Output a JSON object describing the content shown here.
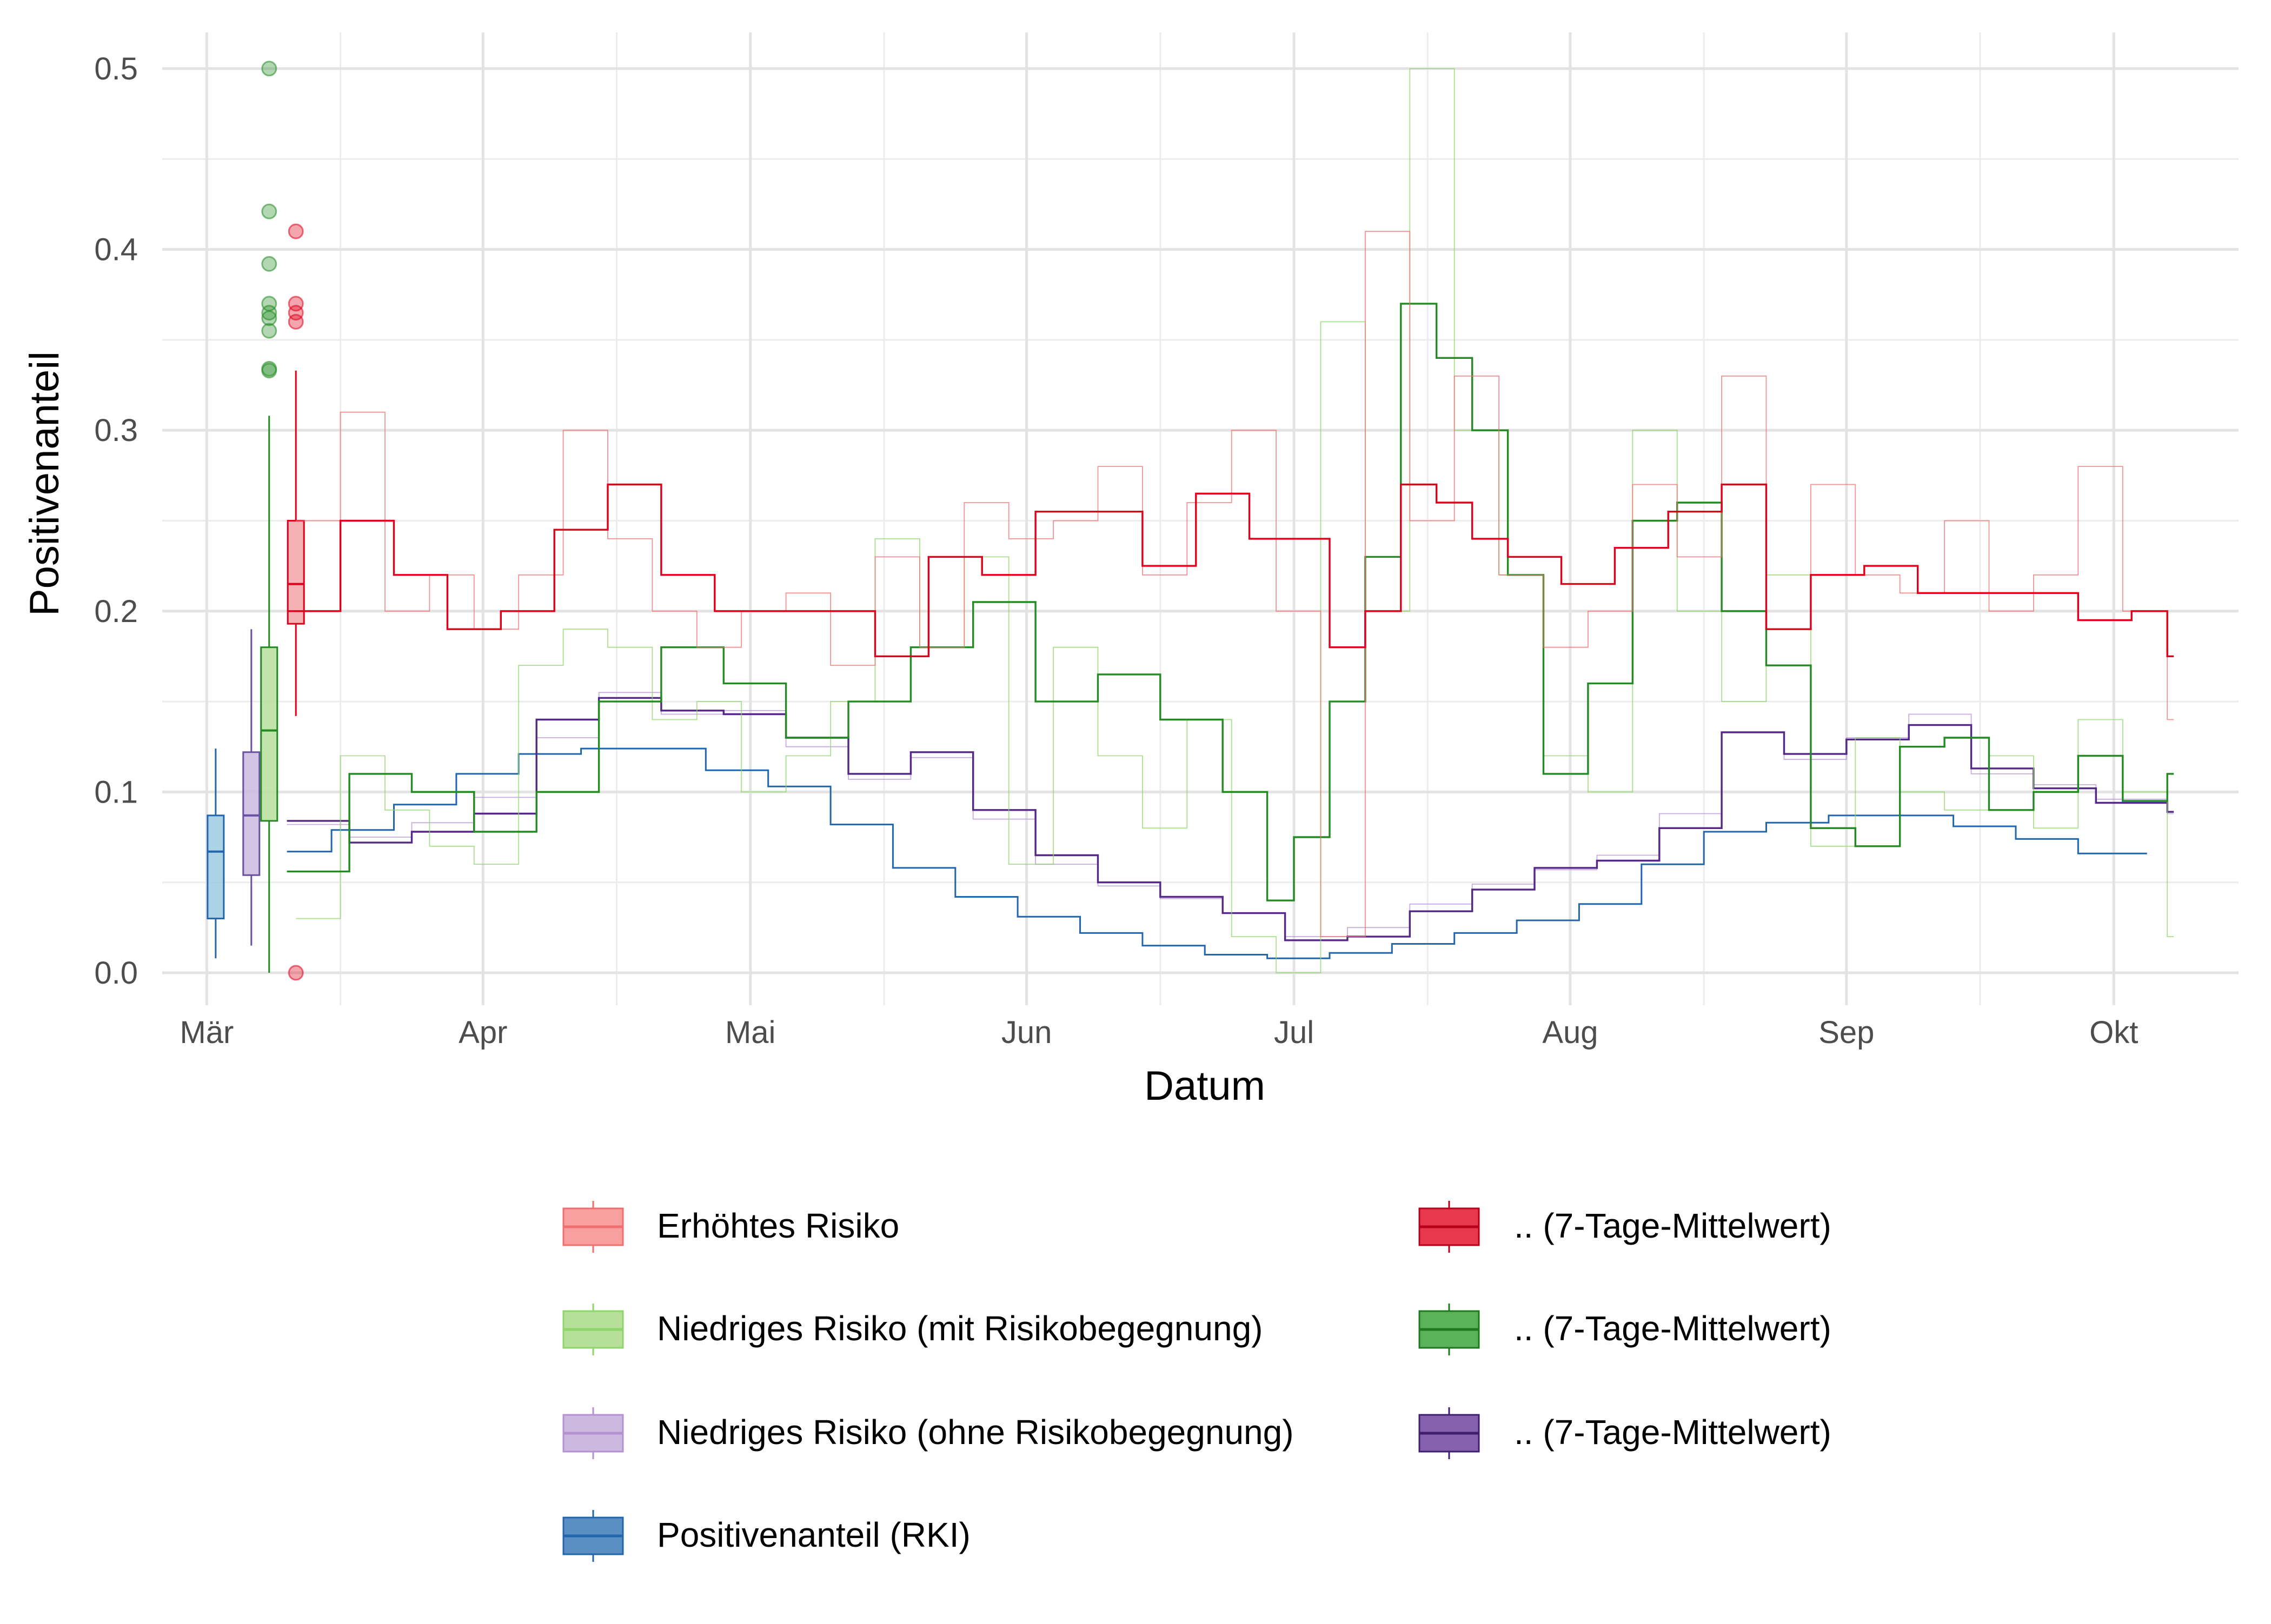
{
  "chart_data": {
    "type": "line",
    "title": "",
    "xlabel": "Datum",
    "ylabel": "Positivenanteil",
    "ylim": [
      0,
      0.52
    ],
    "xlim": [
      "2021-02-24",
      "2021-10-15"
    ],
    "grid": true,
    "legend_position": "bottom",
    "x_ticks": [
      {
        "date": "2021-03-01",
        "label": "Mär"
      },
      {
        "date": "2021-04-01",
        "label": "Apr"
      },
      {
        "date": "2021-05-01",
        "label": "Mai"
      },
      {
        "date": "2021-06-01",
        "label": "Jun"
      },
      {
        "date": "2021-07-01",
        "label": "Jul"
      },
      {
        "date": "2021-08-01",
        "label": "Aug"
      },
      {
        "date": "2021-09-01",
        "label": "Sep"
      },
      {
        "date": "2021-10-01",
        "label": "Okt"
      }
    ],
    "y_ticks": [
      {
        "value": 0.0,
        "label": "0.0"
      },
      {
        "value": 0.1,
        "label": "0.1"
      },
      {
        "value": 0.2,
        "label": "0.2"
      },
      {
        "value": 0.3,
        "label": "0.3"
      },
      {
        "value": 0.4,
        "label": "0.4"
      },
      {
        "value": 0.5,
        "label": "0.5"
      }
    ],
    "series": [
      {
        "name": "Positivenanteil (RKI)",
        "color": "#2166ac",
        "opacity": 1,
        "width": 3,
        "x": [
          "2021-03-10",
          "2021-03-15",
          "2021-03-22",
          "2021-03-29",
          "2021-04-05",
          "2021-04-12",
          "2021-04-19",
          "2021-04-26",
          "2021-05-03",
          "2021-05-10",
          "2021-05-17",
          "2021-05-24",
          "2021-05-31",
          "2021-06-07",
          "2021-06-14",
          "2021-06-21",
          "2021-06-28",
          "2021-07-05",
          "2021-07-12",
          "2021-07-19",
          "2021-07-26",
          "2021-08-02",
          "2021-08-09",
          "2021-08-16",
          "2021-08-23",
          "2021-08-30",
          "2021-09-06",
          "2021-09-13",
          "2021-09-20",
          "2021-09-27",
          "2021-10-04"
        ],
        "y": [
          0.067,
          0.079,
          0.093,
          0.11,
          0.121,
          0.124,
          0.124,
          0.112,
          0.103,
          0.082,
          0.058,
          0.042,
          0.031,
          0.022,
          0.015,
          0.01,
          0.008,
          0.011,
          0.016,
          0.022,
          0.029,
          0.038,
          0.06,
          0.078,
          0.083,
          0.087,
          0.087,
          0.081,
          0.074,
          0.066,
          0.066
        ]
      },
      {
        "name": "Niedriges Risiko (ohne Risikobegegnung)",
        "color": "#b491d2",
        "opacity": 0.75,
        "width": 1.8,
        "x": [
          "2021-03-10",
          "2021-03-17",
          "2021-03-24",
          "2021-03-31",
          "2021-04-07",
          "2021-04-14",
          "2021-04-21",
          "2021-04-28",
          "2021-05-05",
          "2021-05-12",
          "2021-05-19",
          "2021-05-26",
          "2021-06-02",
          "2021-06-09",
          "2021-06-16",
          "2021-06-23",
          "2021-06-30",
          "2021-07-07",
          "2021-07-14",
          "2021-07-21",
          "2021-07-28",
          "2021-08-04",
          "2021-08-11",
          "2021-08-18",
          "2021-08-25",
          "2021-09-01",
          "2021-09-08",
          "2021-09-15",
          "2021-09-22",
          "2021-09-29",
          "2021-10-07"
        ],
        "y": [
          0.082,
          0.075,
          0.083,
          0.097,
          0.13,
          0.155,
          0.143,
          0.145,
          0.125,
          0.107,
          0.119,
          0.085,
          0.06,
          0.048,
          0.041,
          0.033,
          0.02,
          0.025,
          0.038,
          0.049,
          0.057,
          0.065,
          0.088,
          0.133,
          0.118,
          0.13,
          0.143,
          0.11,
          0.104,
          0.096,
          0.088
        ]
      },
      {
        "name": ".. (7-Tage-Mittelwert)",
        "legend_group": "Niedriges Risiko (ohne Risikobegegnung)",
        "color": "#542788",
        "opacity": 1,
        "width": 3.4,
        "x": [
          "2021-03-10",
          "2021-03-17",
          "2021-03-24",
          "2021-03-31",
          "2021-04-07",
          "2021-04-14",
          "2021-04-21",
          "2021-04-28",
          "2021-05-05",
          "2021-05-12",
          "2021-05-19",
          "2021-05-26",
          "2021-06-02",
          "2021-06-09",
          "2021-06-16",
          "2021-06-23",
          "2021-06-30",
          "2021-07-07",
          "2021-07-14",
          "2021-07-21",
          "2021-07-28",
          "2021-08-04",
          "2021-08-11",
          "2021-08-18",
          "2021-08-25",
          "2021-09-01",
          "2021-09-08",
          "2021-09-15",
          "2021-09-22",
          "2021-09-29",
          "2021-10-07"
        ],
        "y": [
          0.084,
          0.072,
          0.078,
          0.088,
          0.14,
          0.152,
          0.145,
          0.143,
          0.13,
          0.11,
          0.122,
          0.09,
          0.065,
          0.05,
          0.042,
          0.033,
          0.018,
          0.02,
          0.034,
          0.046,
          0.058,
          0.062,
          0.08,
          0.133,
          0.121,
          0.129,
          0.137,
          0.113,
          0.102,
          0.094,
          0.089
        ]
      },
      {
        "name": "Niedriges Risiko (mit Risikobegegnung)",
        "color": "#8fd66a",
        "opacity": 0.75,
        "width": 1.8,
        "x": [
          "2021-03-11",
          "2021-03-16",
          "2021-03-21",
          "2021-03-26",
          "2021-03-31",
          "2021-04-05",
          "2021-04-10",
          "2021-04-15",
          "2021-04-20",
          "2021-04-25",
          "2021-04-30",
          "2021-05-05",
          "2021-05-10",
          "2021-05-15",
          "2021-05-20",
          "2021-05-25",
          "2021-05-30",
          "2021-06-04",
          "2021-06-09",
          "2021-06-14",
          "2021-06-19",
          "2021-06-24",
          "2021-06-29",
          "2021-07-04",
          "2021-07-09",
          "2021-07-14",
          "2021-07-19",
          "2021-07-24",
          "2021-07-29",
          "2021-08-03",
          "2021-08-08",
          "2021-08-13",
          "2021-08-18",
          "2021-08-23",
          "2021-08-28",
          "2021-09-02",
          "2021-09-07",
          "2021-09-12",
          "2021-09-17",
          "2021-09-22",
          "2021-09-27",
          "2021-10-02",
          "2021-10-07"
        ],
        "y": [
          0.03,
          0.12,
          0.09,
          0.07,
          0.06,
          0.17,
          0.19,
          0.18,
          0.14,
          0.15,
          0.1,
          0.12,
          0.15,
          0.24,
          0.18,
          0.23,
          0.06,
          0.18,
          0.12,
          0.08,
          0.14,
          0.02,
          0.0,
          0.36,
          0.2,
          0.5,
          0.3,
          0.22,
          0.12,
          0.1,
          0.3,
          0.2,
          0.15,
          0.22,
          0.07,
          0.13,
          0.1,
          0.09,
          0.12,
          0.08,
          0.14,
          0.1,
          0.02
        ]
      },
      {
        "name": ".. (7-Tage-Mittelwert)",
        "legend_group": "Niedriges Risiko (mit Risikobegegnung)",
        "color": "#238b22",
        "opacity": 1,
        "width": 3.4,
        "x": [
          "2021-03-10",
          "2021-03-17",
          "2021-03-24",
          "2021-03-31",
          "2021-04-07",
          "2021-04-14",
          "2021-04-21",
          "2021-04-28",
          "2021-05-05",
          "2021-05-12",
          "2021-05-19",
          "2021-05-26",
          "2021-06-02",
          "2021-06-09",
          "2021-06-16",
          "2021-06-23",
          "2021-06-28",
          "2021-07-01",
          "2021-07-05",
          "2021-07-09",
          "2021-07-13",
          "2021-07-17",
          "2021-07-21",
          "2021-07-25",
          "2021-07-29",
          "2021-08-03",
          "2021-08-08",
          "2021-08-13",
          "2021-08-18",
          "2021-08-23",
          "2021-08-28",
          "2021-09-02",
          "2021-09-07",
          "2021-09-12",
          "2021-09-17",
          "2021-09-22",
          "2021-09-27",
          "2021-10-02",
          "2021-10-07"
        ],
        "y": [
          0.056,
          0.11,
          0.1,
          0.078,
          0.1,
          0.15,
          0.18,
          0.16,
          0.13,
          0.15,
          0.18,
          0.205,
          0.15,
          0.165,
          0.14,
          0.1,
          0.04,
          0.075,
          0.15,
          0.23,
          0.37,
          0.34,
          0.3,
          0.22,
          0.11,
          0.16,
          0.25,
          0.26,
          0.2,
          0.17,
          0.08,
          0.07,
          0.125,
          0.13,
          0.09,
          0.1,
          0.12,
          0.095,
          0.11
        ]
      },
      {
        "name": "Erhöhtes Risiko",
        "color": "#f26d6d",
        "opacity": 0.75,
        "width": 1.8,
        "x": [
          "2021-03-11",
          "2021-03-16",
          "2021-03-21",
          "2021-03-26",
          "2021-03-31",
          "2021-04-05",
          "2021-04-10",
          "2021-04-15",
          "2021-04-20",
          "2021-04-25",
          "2021-04-30",
          "2021-05-05",
          "2021-05-10",
          "2021-05-15",
          "2021-05-20",
          "2021-05-25",
          "2021-05-30",
          "2021-06-04",
          "2021-06-09",
          "2021-06-14",
          "2021-06-19",
          "2021-06-24",
          "2021-06-29",
          "2021-07-04",
          "2021-07-09",
          "2021-07-14",
          "2021-07-19",
          "2021-07-24",
          "2021-07-29",
          "2021-08-03",
          "2021-08-08",
          "2021-08-13",
          "2021-08-18",
          "2021-08-23",
          "2021-08-28",
          "2021-09-02",
          "2021-09-07",
          "2021-09-12",
          "2021-09-17",
          "2021-09-22",
          "2021-09-27",
          "2021-10-02",
          "2021-10-07"
        ],
        "y": [
          0.25,
          0.31,
          0.2,
          0.22,
          0.19,
          0.22,
          0.3,
          0.24,
          0.2,
          0.18,
          0.2,
          0.21,
          0.17,
          0.23,
          0.18,
          0.26,
          0.24,
          0.25,
          0.28,
          0.22,
          0.26,
          0.3,
          0.2,
          0.02,
          0.41,
          0.25,
          0.33,
          0.22,
          0.18,
          0.2,
          0.27,
          0.23,
          0.33,
          0.19,
          0.27,
          0.22,
          0.21,
          0.25,
          0.2,
          0.22,
          0.28,
          0.2,
          0.14
        ]
      },
      {
        "name": ".. (7-Tage-Mittelwert)",
        "legend_group": "Erhöhtes Risiko",
        "color": "#e0001b",
        "opacity": 1,
        "width": 3.4,
        "x": [
          "2021-03-10",
          "2021-03-16",
          "2021-03-22",
          "2021-03-28",
          "2021-04-03",
          "2021-04-09",
          "2021-04-15",
          "2021-04-21",
          "2021-04-27",
          "2021-05-03",
          "2021-05-09",
          "2021-05-15",
          "2021-05-21",
          "2021-05-27",
          "2021-06-02",
          "2021-06-08",
          "2021-06-14",
          "2021-06-20",
          "2021-06-26",
          "2021-07-01",
          "2021-07-05",
          "2021-07-09",
          "2021-07-13",
          "2021-07-17",
          "2021-07-21",
          "2021-07-25",
          "2021-07-31",
          "2021-08-06",
          "2021-08-12",
          "2021-08-18",
          "2021-08-23",
          "2021-08-28",
          "2021-09-03",
          "2021-09-09",
          "2021-09-15",
          "2021-09-21",
          "2021-09-27",
          "2021-10-03",
          "2021-10-07"
        ],
        "y": [
          0.2,
          0.25,
          0.22,
          0.19,
          0.2,
          0.245,
          0.27,
          0.22,
          0.2,
          0.2,
          0.2,
          0.175,
          0.23,
          0.22,
          0.255,
          0.255,
          0.225,
          0.265,
          0.24,
          0.24,
          0.18,
          0.2,
          0.27,
          0.26,
          0.24,
          0.23,
          0.215,
          0.235,
          0.255,
          0.27,
          0.19,
          0.22,
          0.225,
          0.21,
          0.21,
          0.21,
          0.195,
          0.2,
          0.175
        ]
      }
    ],
    "boxplots": [
      {
        "name": "Positivenanteil (RKI)",
        "date": "2021-03-02",
        "color": "#2166ac",
        "fill": "#9ecae1",
        "min": 0.008,
        "q1": 0.03,
        "median": 0.067,
        "q3": 0.087,
        "max": 0.124,
        "outliers": []
      },
      {
        "name": "Niedriges Risiko (ohne Risikobegegnung)",
        "date": "2021-03-06",
        "color": "#6a51a3",
        "fill": "#cdb8e0",
        "min": 0.015,
        "q1": 0.054,
        "median": 0.087,
        "q3": 0.122,
        "max": 0.19,
        "outliers": []
      },
      {
        "name": "Niedriges Risiko (mit Risikobegegnung)",
        "date": "2021-03-08",
        "color": "#238b22",
        "fill": "#b6df9c",
        "min": 0.0,
        "q1": 0.084,
        "median": 0.134,
        "q3": 0.18,
        "max": 0.308,
        "outliers": [
          0.333,
          0.334,
          0.355,
          0.362,
          0.365,
          0.37,
          0.392,
          0.421,
          0.5
        ]
      },
      {
        "name": "Erhöhtes Risiko",
        "date": "2021-03-11",
        "color": "#e0001b",
        "fill": "#f4a3a8",
        "min": 0.142,
        "q1": 0.193,
        "median": 0.215,
        "q3": 0.25,
        "max": 0.333,
        "outliers": [
          0.0,
          0.36,
          0.365,
          0.37,
          0.41
        ]
      }
    ]
  },
  "legend": {
    "left": [
      {
        "label": "Erhöhtes Risiko",
        "fill": "#f8a0a0",
        "stroke": "#f26d6d",
        "line": "#f26d6d"
      },
      {
        "label": "Niedriges Risiko (mit Risikobegegnung)",
        "fill": "#b6e09a",
        "stroke": "#8fd66a",
        "line": "#8fd66a"
      },
      {
        "label": "Niedriges Risiko (ohne Risikobegegnung)",
        "fill": "#cdb8e0",
        "stroke": "#b491d2",
        "line": "#b491d2"
      },
      {
        "label": "Positivenanteil (RKI)",
        "fill": "#5a8fc4",
        "stroke": "#2166ac",
        "line": "#2166ac"
      }
    ],
    "right": [
      {
        "label": ".. (7-Tage-Mittelwert)",
        "fill": "#e7394d",
        "stroke": "#b5001a",
        "line": "#b5001a"
      },
      {
        "label": ".. (7-Tage-Mittelwert)",
        "fill": "#5cb25a",
        "stroke": "#1f7a1f",
        "line": "#1f7a1f"
      },
      {
        "label": ".. (7-Tage-Mittelwert)",
        "fill": "#8460ad",
        "stroke": "#3f1f70",
        "line": "#3f1f70"
      }
    ]
  }
}
